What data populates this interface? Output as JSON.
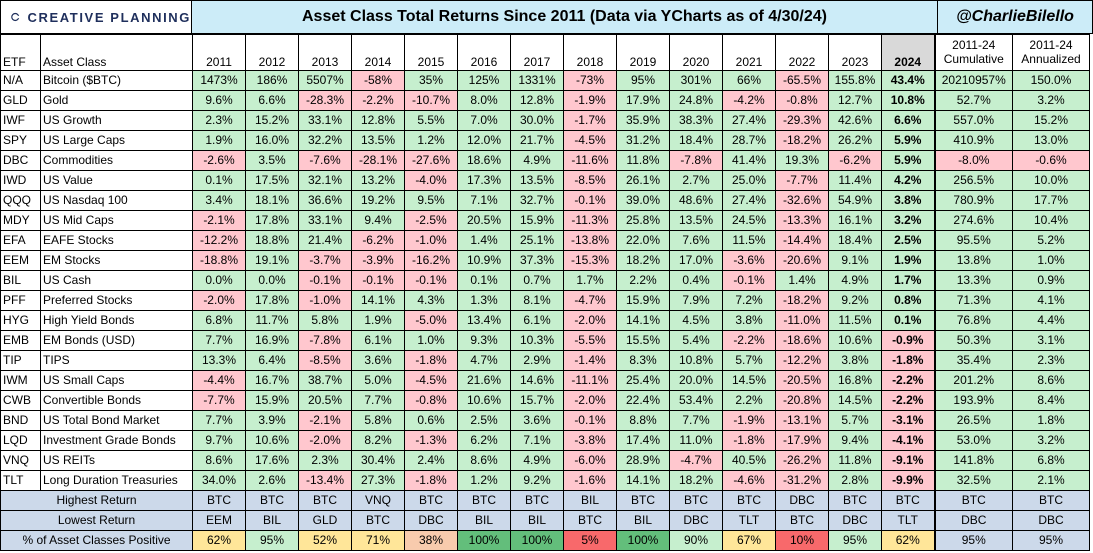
{
  "brand": "CREATIVE PLANNING",
  "title": "Asset Class Total Returns Since 2011 (Data via YCharts as of 4/30/24)",
  "handle": "@CharlieBilello",
  "colors": {
    "pos": "#c6efce",
    "neg": "#ffc7ce",
    "header_bg": "#ccecf8",
    "summary_bg": "#ccd9ea"
  },
  "columns": {
    "etf": "ETF",
    "asset_class": "Asset Class",
    "years": [
      "2011",
      "2012",
      "2013",
      "2014",
      "2015",
      "2016",
      "2017",
      "2018",
      "2019",
      "2020",
      "2021",
      "2022",
      "2023",
      "2024"
    ],
    "cum_line1": "2011-24",
    "cum_line2": "Cumulative",
    "ann_line1": "2011-24",
    "ann_line2": "Annualized"
  },
  "chart_data": {
    "type": "table",
    "title": "Asset Class Total Returns Since 2011 (Data via YCharts as of 4/30/24)",
    "rows": [
      {
        "etf": "N/A",
        "name": "Bitcoin ($BTC)",
        "values": [
          "1473%",
          "186%",
          "5507%",
          "-58%",
          "35%",
          "125%",
          "1331%",
          "-73%",
          "95%",
          "301%",
          "66%",
          "-65.5%",
          "155.8%",
          "43.4%"
        ],
        "cum": "20210957%",
        "ann": "150.0%"
      },
      {
        "etf": "GLD",
        "name": "Gold",
        "values": [
          "9.6%",
          "6.6%",
          "-28.3%",
          "-2.2%",
          "-10.7%",
          "8.0%",
          "12.8%",
          "-1.9%",
          "17.9%",
          "24.8%",
          "-4.2%",
          "-0.8%",
          "12.7%",
          "10.8%"
        ],
        "cum": "52.7%",
        "ann": "3.2%"
      },
      {
        "etf": "IWF",
        "name": "US Growth",
        "values": [
          "2.3%",
          "15.2%",
          "33.1%",
          "12.8%",
          "5.5%",
          "7.0%",
          "30.0%",
          "-1.7%",
          "35.9%",
          "38.3%",
          "27.4%",
          "-29.3%",
          "42.6%",
          "6.6%"
        ],
        "cum": "557.0%",
        "ann": "15.2%"
      },
      {
        "etf": "SPY",
        "name": "US Large Caps",
        "values": [
          "1.9%",
          "16.0%",
          "32.2%",
          "13.5%",
          "1.2%",
          "12.0%",
          "21.7%",
          "-4.5%",
          "31.2%",
          "18.4%",
          "28.7%",
          "-18.2%",
          "26.2%",
          "5.9%"
        ],
        "cum": "410.9%",
        "ann": "13.0%"
      },
      {
        "etf": "DBC",
        "name": "Commodities",
        "values": [
          "-2.6%",
          "3.5%",
          "-7.6%",
          "-28.1%",
          "-27.6%",
          "18.6%",
          "4.9%",
          "-11.6%",
          "11.8%",
          "-7.8%",
          "41.4%",
          "19.3%",
          "-6.2%",
          "5.9%"
        ],
        "cum": "-8.0%",
        "ann": "-0.6%"
      },
      {
        "etf": "IWD",
        "name": "US Value",
        "values": [
          "0.1%",
          "17.5%",
          "32.1%",
          "13.2%",
          "-4.0%",
          "17.3%",
          "13.5%",
          "-8.5%",
          "26.1%",
          "2.7%",
          "25.0%",
          "-7.7%",
          "11.4%",
          "4.2%"
        ],
        "cum": "256.5%",
        "ann": "10.0%"
      },
      {
        "etf": "QQQ",
        "name": "US Nasdaq 100",
        "values": [
          "3.4%",
          "18.1%",
          "36.6%",
          "19.2%",
          "9.5%",
          "7.1%",
          "32.7%",
          "-0.1%",
          "39.0%",
          "48.6%",
          "27.4%",
          "-32.6%",
          "54.9%",
          "3.8%"
        ],
        "cum": "780.9%",
        "ann": "17.7%"
      },
      {
        "etf": "MDY",
        "name": "US Mid Caps",
        "values": [
          "-2.1%",
          "17.8%",
          "33.1%",
          "9.4%",
          "-2.5%",
          "20.5%",
          "15.9%",
          "-11.3%",
          "25.8%",
          "13.5%",
          "24.5%",
          "-13.3%",
          "16.1%",
          "3.2%"
        ],
        "cum": "274.6%",
        "ann": "10.4%"
      },
      {
        "etf": "EFA",
        "name": "EAFE Stocks",
        "values": [
          "-12.2%",
          "18.8%",
          "21.4%",
          "-6.2%",
          "-1.0%",
          "1.4%",
          "25.1%",
          "-13.8%",
          "22.0%",
          "7.6%",
          "11.5%",
          "-14.4%",
          "18.4%",
          "2.5%"
        ],
        "cum": "95.5%",
        "ann": "5.2%"
      },
      {
        "etf": "EEM",
        "name": "EM Stocks",
        "values": [
          "-18.8%",
          "19.1%",
          "-3.7%",
          "-3.9%",
          "-16.2%",
          "10.9%",
          "37.3%",
          "-15.3%",
          "18.2%",
          "17.0%",
          "-3.6%",
          "-20.6%",
          "9.1%",
          "1.9%"
        ],
        "cum": "13.8%",
        "ann": "1.0%"
      },
      {
        "etf": "BIL",
        "name": "US Cash",
        "values": [
          "0.0%",
          "0.0%",
          "-0.1%",
          "-0.1%",
          "-0.1%",
          "0.1%",
          "0.7%",
          "1.7%",
          "2.2%",
          "0.4%",
          "-0.1%",
          "1.4%",
          "4.9%",
          "1.7%"
        ],
        "cum": "13.3%",
        "ann": "0.9%"
      },
      {
        "etf": "PFF",
        "name": "Preferred Stocks",
        "values": [
          "-2.0%",
          "17.8%",
          "-1.0%",
          "14.1%",
          "4.3%",
          "1.3%",
          "8.1%",
          "-4.7%",
          "15.9%",
          "7.9%",
          "7.2%",
          "-18.2%",
          "9.2%",
          "0.8%"
        ],
        "cum": "71.3%",
        "ann": "4.1%"
      },
      {
        "etf": "HYG",
        "name": "High Yield Bonds",
        "values": [
          "6.8%",
          "11.7%",
          "5.8%",
          "1.9%",
          "-5.0%",
          "13.4%",
          "6.1%",
          "-2.0%",
          "14.1%",
          "4.5%",
          "3.8%",
          "-11.0%",
          "11.5%",
          "0.1%"
        ],
        "cum": "76.8%",
        "ann": "4.4%"
      },
      {
        "etf": "EMB",
        "name": "EM Bonds (USD)",
        "values": [
          "7.7%",
          "16.9%",
          "-7.8%",
          "6.1%",
          "1.0%",
          "9.3%",
          "10.3%",
          "-5.5%",
          "15.5%",
          "5.4%",
          "-2.2%",
          "-18.6%",
          "10.6%",
          "-0.9%"
        ],
        "cum": "50.3%",
        "ann": "3.1%"
      },
      {
        "etf": "TIP",
        "name": "TIPS",
        "values": [
          "13.3%",
          "6.4%",
          "-8.5%",
          "3.6%",
          "-1.8%",
          "4.7%",
          "2.9%",
          "-1.4%",
          "8.3%",
          "10.8%",
          "5.7%",
          "-12.2%",
          "3.8%",
          "-1.8%"
        ],
        "cum": "35.4%",
        "ann": "2.3%"
      },
      {
        "etf": "IWM",
        "name": "US Small Caps",
        "values": [
          "-4.4%",
          "16.7%",
          "38.7%",
          "5.0%",
          "-4.5%",
          "21.6%",
          "14.6%",
          "-11.1%",
          "25.4%",
          "20.0%",
          "14.5%",
          "-20.5%",
          "16.8%",
          "-2.2%"
        ],
        "cum": "201.2%",
        "ann": "8.6%"
      },
      {
        "etf": "CWB",
        "name": "Convertible Bonds",
        "values": [
          "-7.7%",
          "15.9%",
          "20.5%",
          "7.7%",
          "-0.8%",
          "10.6%",
          "15.7%",
          "-2.0%",
          "22.4%",
          "53.4%",
          "2.2%",
          "-20.8%",
          "14.5%",
          "-2.2%"
        ],
        "cum": "193.9%",
        "ann": "8.4%"
      },
      {
        "etf": "BND",
        "name": "US Total Bond Market",
        "values": [
          "7.7%",
          "3.9%",
          "-2.1%",
          "5.8%",
          "0.6%",
          "2.5%",
          "3.6%",
          "-0.1%",
          "8.8%",
          "7.7%",
          "-1.9%",
          "-13.1%",
          "5.7%",
          "-3.1%"
        ],
        "cum": "26.5%",
        "ann": "1.8%"
      },
      {
        "etf": "LQD",
        "name": "Investment Grade Bonds",
        "values": [
          "9.7%",
          "10.6%",
          "-2.0%",
          "8.2%",
          "-1.3%",
          "6.2%",
          "7.1%",
          "-3.8%",
          "17.4%",
          "11.0%",
          "-1.8%",
          "-17.9%",
          "9.4%",
          "-4.1%"
        ],
        "cum": "53.0%",
        "ann": "3.2%"
      },
      {
        "etf": "VNQ",
        "name": "US REITs",
        "values": [
          "8.6%",
          "17.6%",
          "2.3%",
          "30.4%",
          "2.4%",
          "8.6%",
          "4.9%",
          "-6.0%",
          "28.9%",
          "-4.7%",
          "40.5%",
          "-26.2%",
          "11.8%",
          "-9.1%"
        ],
        "cum": "141.8%",
        "ann": "6.8%"
      },
      {
        "etf": "TLT",
        "name": "Long Duration Treasuries",
        "values": [
          "34.0%",
          "2.6%",
          "-13.4%",
          "27.3%",
          "-1.8%",
          "1.2%",
          "9.2%",
          "-1.6%",
          "14.1%",
          "18.2%",
          "-4.6%",
          "-31.2%",
          "2.8%",
          "-9.9%"
        ],
        "cum": "32.5%",
        "ann": "2.1%"
      }
    ],
    "highest": {
      "label": "Highest Return",
      "values": [
        "BTC",
        "BTC",
        "BTC",
        "VNQ",
        "BTC",
        "BTC",
        "BTC",
        "BIL",
        "BTC",
        "BTC",
        "BTC",
        "DBC",
        "BTC",
        "BTC",
        "BTC",
        "BTC"
      ]
    },
    "lowest": {
      "label": "Lowest Return",
      "values": [
        "EEM",
        "BIL",
        "GLD",
        "BTC",
        "DBC",
        "BIL",
        "BIL",
        "BTC",
        "BIL",
        "DBC",
        "TLT",
        "BTC",
        "DBC",
        "TLT",
        "DBC",
        "DBC"
      ]
    },
    "positive": {
      "label": "% of Asset Classes Positive",
      "values": [
        "62%",
        "95%",
        "52%",
        "71%",
        "38%",
        "100%",
        "100%",
        "5%",
        "100%",
        "90%",
        "67%",
        "10%",
        "95%",
        "62%",
        "95%",
        "95%"
      ],
      "colors": [
        "#ffe699",
        "#c6efce",
        "#ffe699",
        "#ffe699",
        "#f8cbad",
        "#63be7b",
        "#63be7b",
        "#f8696b",
        "#63be7b",
        "#c6efce",
        "#ffe699",
        "#f8696b",
        "#c6efce",
        "#ffe699",
        "#ccd9ea",
        "#ccd9ea"
      ]
    }
  }
}
